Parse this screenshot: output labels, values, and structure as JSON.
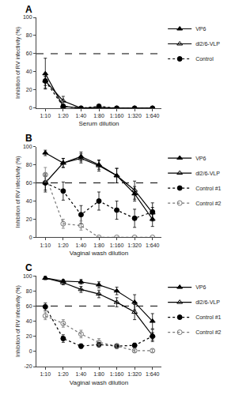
{
  "chart_data": [
    {
      "type": "line",
      "title": "A",
      "x_label": "Serum dilution",
      "y_label": "Inhibition of RV infectivity (%)",
      "categories": [
        "1:10",
        "1:20",
        "1:40",
        "1:80",
        "1:160",
        "1:320",
        "1:640"
      ],
      "series": [
        {
          "name": "VP6",
          "color": "#000000",
          "marker": "triangle-up",
          "line_style": "solid",
          "values": [
            38,
            2,
            0,
            0,
            0,
            0,
            0
          ],
          "errors": [
            17,
            2,
            0,
            0,
            0,
            0,
            0
          ]
        },
        {
          "name": "dl2/6-VLP",
          "color": "#000000",
          "marker": "triangle-up-open",
          "line_style": "solid",
          "values": [
            30,
            8,
            0,
            1,
            0,
            0,
            0
          ],
          "errors": [
            8,
            5,
            0,
            1,
            0,
            0,
            0
          ]
        },
        {
          "name": "Control",
          "color": "#000000",
          "marker": "circle",
          "line_style": "dotted",
          "values": [
            30,
            2,
            0,
            2,
            0,
            0,
            0
          ],
          "errors": [
            5,
            2,
            0,
            2,
            0,
            0,
            0
          ]
        }
      ],
      "ylim": [
        0,
        100
      ],
      "yticks": [
        0,
        20,
        40,
        60,
        80,
        100
      ],
      "reference_lines": [
        60
      ],
      "grid": false,
      "legend": "right"
    },
    {
      "type": "line",
      "title": "B",
      "x_label": "Vaginal wash dilution",
      "y_label": "Inhibition of RV infectivity (%)",
      "categories": [
        "1:10",
        "1:20",
        "1:40",
        "1:80",
        "1:160",
        "1:320",
        "1:640"
      ],
      "series": [
        {
          "name": "VP6",
          "color": "#000000",
          "marker": "triangle-up",
          "line_style": "solid",
          "values": [
            93,
            82,
            89,
            80,
            68,
            48,
            20
          ],
          "errors": [
            3,
            5,
            5,
            5,
            8,
            8,
            8
          ]
        },
        {
          "name": "dl2/6-VLP",
          "color": "#000000",
          "marker": "triangle-up-open",
          "line_style": "solid",
          "values": [
            60,
            82,
            87,
            79,
            68,
            52,
            27
          ],
          "errors": [
            8,
            5,
            5,
            6,
            8,
            10,
            6
          ]
        },
        {
          "name": "Control #1",
          "color": "#000000",
          "marker": "circle",
          "line_style": "dotted",
          "values": [
            60,
            51,
            25,
            40,
            30,
            21,
            28
          ],
          "errors": [
            10,
            10,
            10,
            10,
            10,
            10,
            10
          ]
        },
        {
          "name": "Control #2",
          "color": "#777777",
          "marker": "circle-open",
          "line_style": "dotted",
          "values": [
            69,
            15,
            13,
            0,
            0,
            0,
            0
          ],
          "errors": [
            8,
            5,
            5,
            0,
            0,
            0,
            0
          ]
        }
      ],
      "ylim": [
        0,
        100
      ],
      "yticks": [
        0,
        20,
        40,
        60,
        80,
        100
      ],
      "reference_lines": [
        60
      ],
      "grid": false,
      "legend": "right"
    },
    {
      "type": "line",
      "title": "C",
      "x_label": "Vaginal wash dilution",
      "y_label": "Inhibition of RV infectivity (%)",
      "categories": [
        "1:10",
        "1:20",
        "1:40",
        "1:80",
        "1:160",
        "1:320",
        "1:640"
      ],
      "series": [
        {
          "name": "VP6",
          "color": "#000000",
          "marker": "triangle-up",
          "line_style": "solid",
          "values": [
            97,
            93,
            92,
            88,
            80,
            65,
            40
          ],
          "errors": [
            2,
            2,
            3,
            4,
            5,
            10,
            10
          ]
        },
        {
          "name": "dl2/6-VLP",
          "color": "#000000",
          "marker": "triangle-up-open",
          "line_style": "solid",
          "values": [
            97,
            91,
            82,
            76,
            65,
            52,
            21
          ],
          "errors": [
            2,
            3,
            4,
            5,
            6,
            10,
            8
          ]
        },
        {
          "name": "Control #1",
          "color": "#000000",
          "marker": "circle",
          "line_style": "dotted",
          "values": [
            59,
            17,
            7,
            9,
            7,
            8,
            20
          ],
          "errors": [
            5,
            5,
            3,
            3,
            3,
            3,
            5
          ]
        },
        {
          "name": "Control #2",
          "color": "#777777",
          "marker": "circle-open",
          "line_style": "dotted",
          "values": [
            47,
            37,
            23,
            12,
            7,
            1,
            1
          ],
          "errors": [
            5,
            5,
            5,
            5,
            3,
            2,
            2
          ]
        }
      ],
      "ylim": [
        -20,
        100
      ],
      "yticks": [
        -20,
        0,
        20,
        40,
        60,
        80,
        100
      ],
      "reference_lines": [
        60
      ],
      "grid": false,
      "legend": "right"
    }
  ]
}
